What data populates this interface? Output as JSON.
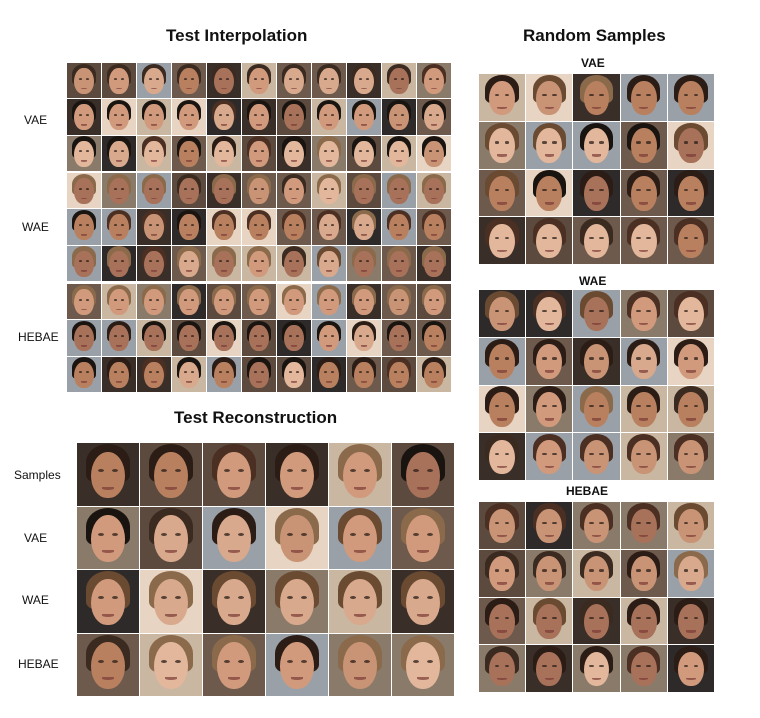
{
  "titles": {
    "interpolation": "Test Interpolation",
    "random": "Random Samples",
    "reconstruction": "Test Reconstruction"
  },
  "interpolation_labels": [
    "VAE",
    "WAE",
    "HEBAE"
  ],
  "reconstruction_labels": [
    "Samples",
    "VAE",
    "WAE",
    "HEBAE"
  ],
  "random_labels": [
    "VAE",
    "WAE",
    "HEBAE"
  ],
  "palette": {
    "skin": [
      "#d8a98c",
      "#c99476",
      "#e2b79c",
      "#b9805f",
      "#d19a7c",
      "#a8715a"
    ],
    "hair": [
      "#2b1d16",
      "#4a2f22",
      "#1a1410",
      "#6b4a32",
      "#3a2a20",
      "#8a6a4a"
    ],
    "bg": [
      "#6d5a4c",
      "#3a2e28",
      "#8a7a6a",
      "#c9b7a2",
      "#2e2a2a",
      "#5c4a3e",
      "#9aa0a8",
      "#e8d4c2"
    ]
  }
}
